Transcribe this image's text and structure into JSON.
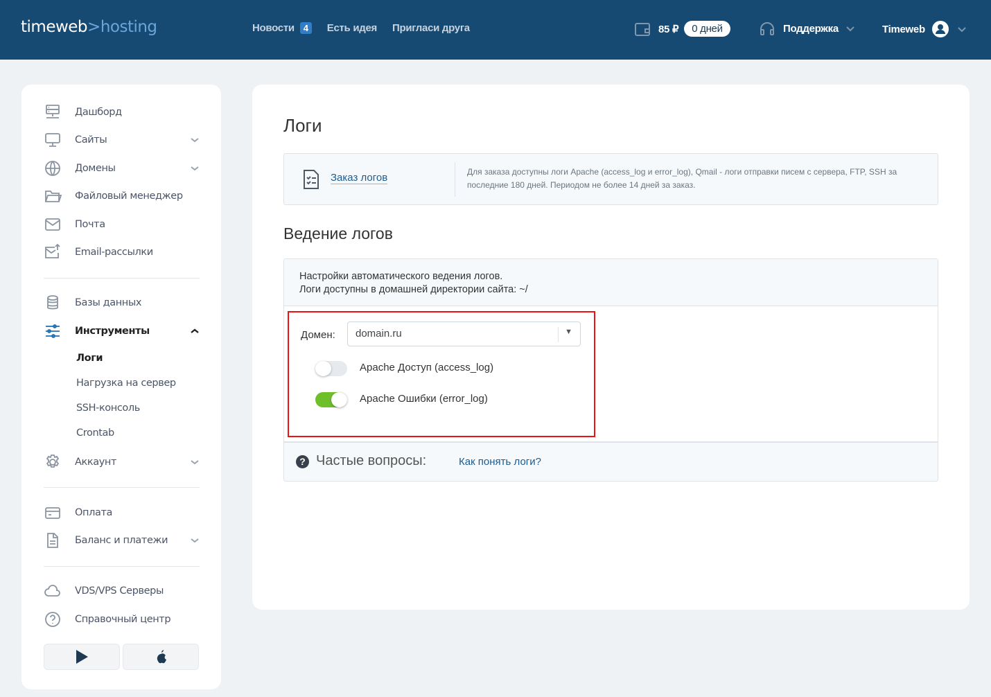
{
  "header": {
    "logo_a": "timeweb",
    "logo_sep": ">",
    "logo_b": "hosting",
    "nav": [
      {
        "label": "Новости",
        "badge": "4"
      },
      {
        "label": "Есть идея"
      },
      {
        "label": "Пригласи друга"
      }
    ],
    "balance": "85 ₽",
    "days": "0 дней",
    "support": "Поддержка",
    "user": "Timeweb"
  },
  "sidebar": {
    "items": [
      {
        "label": "Дашборд",
        "icon": "server-icon"
      },
      {
        "label": "Сайты",
        "icon": "monitor-icon"
      },
      {
        "label": "Домены",
        "icon": "globe-icon"
      },
      {
        "label": "Файловый менеджер",
        "icon": "folder-icon"
      },
      {
        "label": "Почта",
        "icon": "mail-icon"
      },
      {
        "label": "Email-рассылки",
        "icon": "mail-send-icon"
      },
      {
        "label": "Базы данных",
        "icon": "database-icon"
      },
      {
        "label": "Инструменты",
        "icon": "sliders-icon"
      },
      {
        "label": "Аккаунт",
        "icon": "gear-icon"
      },
      {
        "label": "Оплата",
        "icon": "card-icon"
      },
      {
        "label": "Баланс и платежи",
        "icon": "document-icon"
      },
      {
        "label": "VDS/VPS Серверы",
        "icon": "cloud-icon"
      },
      {
        "label": "Справочный центр",
        "icon": "help-icon"
      }
    ],
    "sub": [
      "Логи",
      "Нагрузка на сервер",
      "SSH-консоль",
      "Crontab"
    ]
  },
  "main": {
    "title": "Логи",
    "order_link": "Заказ логов",
    "order_desc": "Для заказа доступны логи Apache (access_log и error_log), Qmail - логи отправки писем с сервера, FTP, SSH за последние 180 дней. Периодом не более 14 дней за заказ.",
    "section": "Ведение логов",
    "info1": "Настройки автоматического ведения логов.",
    "info2": "Логи доступны в домашней директории сайта: ~/",
    "domain_label": "Домен:",
    "domain_value": "domain.ru",
    "toggles": [
      {
        "label": "Apache Доступ (access_log)",
        "on": false
      },
      {
        "label": "Apache Ошибки (error_log)",
        "on": true
      }
    ],
    "faq_title": "Частые вопросы:",
    "faq_link": "Как понять логи?"
  },
  "colors": {
    "header": "#174a72",
    "accent": "#2f7fc8",
    "toggle_on": "#6fbf2a",
    "highlight": "#ee1111"
  }
}
